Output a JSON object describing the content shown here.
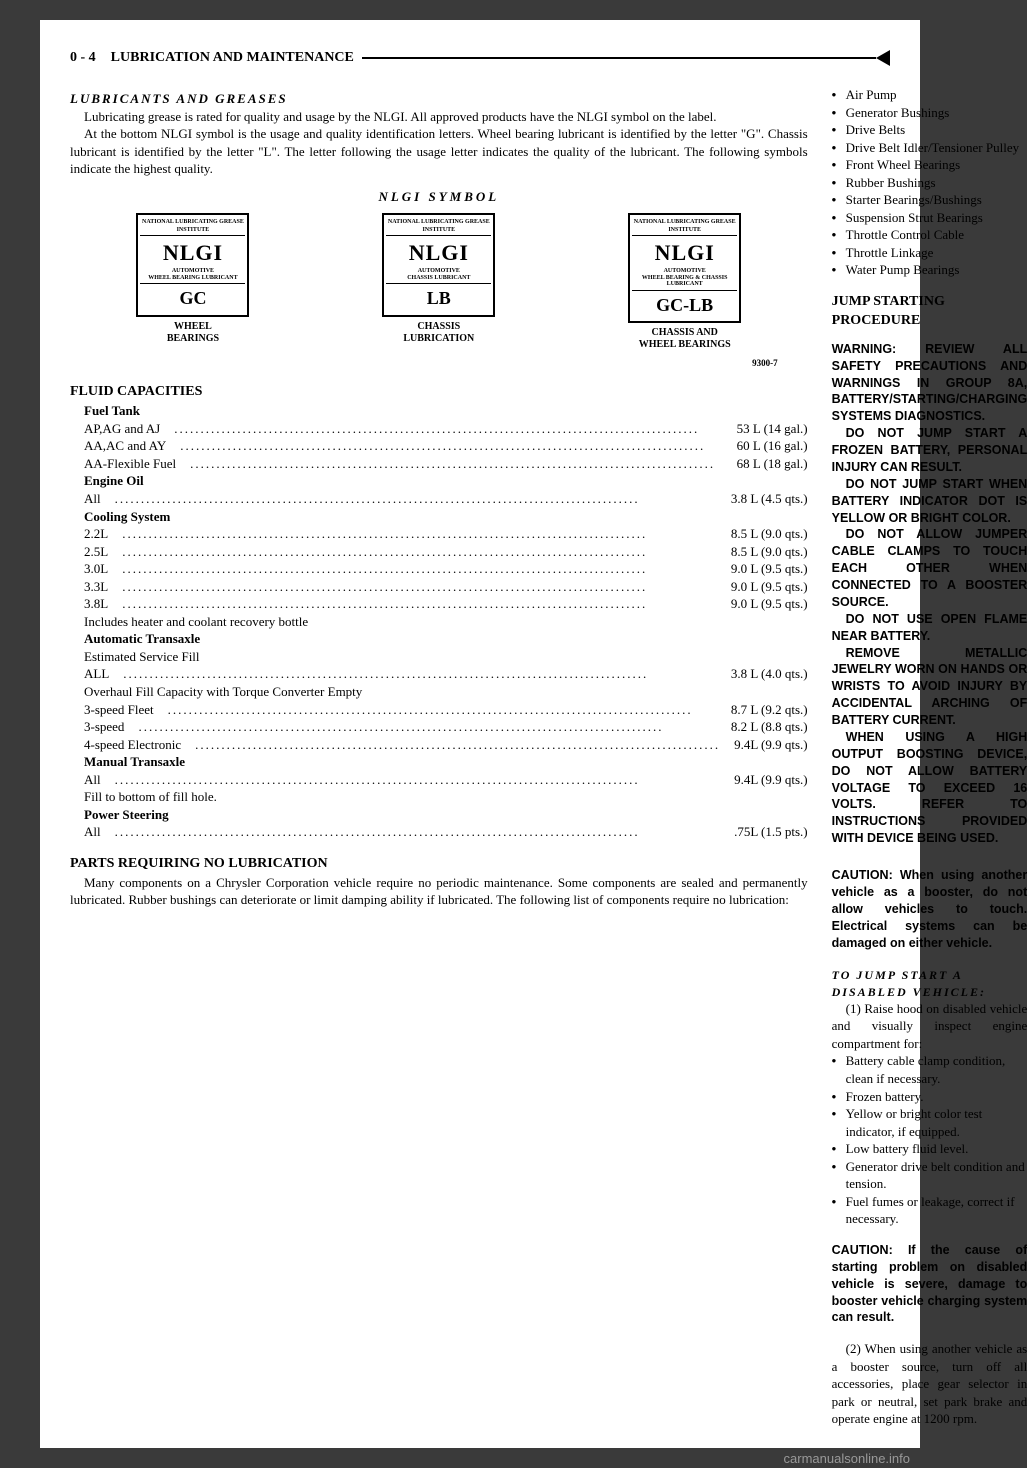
{
  "header": {
    "page_num": "0 - 4",
    "title": "LUBRICATION AND MAINTENANCE"
  },
  "left": {
    "lubricants_heading": "LUBRICANTS AND GREASES",
    "lubricants_p1": "Lubricating grease is rated for quality and usage by the NLGI. All approved products have the NLGI symbol on the label.",
    "lubricants_p2": "At the bottom NLGI symbol is the usage and quality identification letters. Wheel bearing lubricant is identified by the letter \"G\". Chassis lubricant is identified by the letter \"L\". The letter following the usage letter indicates the quality of the lubricant. The following symbols indicate the highest quality.",
    "nlgi_title": "NLGI SYMBOL",
    "nlgi": [
      {
        "top": "NATIONAL LUBRICATING GREASE INSTITUTE",
        "main": "NLGI",
        "sub": "AUTOMOTIVE\nWHEEL BEARING LUBRICANT",
        "code": "GC",
        "caption": "WHEEL\nBEARINGS"
      },
      {
        "top": "NATIONAL LUBRICATING GREASE INSTITUTE",
        "main": "NLGI",
        "sub": "AUTOMOTIVE\nCHASSIS LUBRICANT",
        "code": "LB",
        "caption": "CHASSIS\nLUBRICATION"
      },
      {
        "top": "NATIONAL LUBRICATING GREASE INSTITUTE",
        "main": "NLGI",
        "sub": "AUTOMOTIVE\nWHEEL BEARING & CHASSIS\nLUBRICANT",
        "code": "GC-LB",
        "caption": "CHASSIS AND\nWHEEL BEARINGS"
      }
    ],
    "nlgi_ref": "9300-7",
    "fluid_heading": "FLUID CAPACITIES",
    "fluid_groups": [
      {
        "label": "Fuel Tank",
        "bold": true,
        "rows": [
          {
            "l": "AP,AG and AJ",
            "v": "53 L (14 gal.)"
          },
          {
            "l": "AA,AC and AY",
            "v": "60 L (16 gal.)"
          },
          {
            "l": "AA-Flexible Fuel",
            "v": "68 L (18 gal.)"
          }
        ]
      },
      {
        "label": "Engine Oil",
        "bold": true,
        "rows": [
          {
            "l": "All",
            "v": "3.8 L (4.5 qts.)"
          }
        ]
      },
      {
        "label": "Cooling System",
        "bold": true,
        "rows": [
          {
            "l": "2.2L",
            "v": "8.5 L (9.0 qts.)"
          },
          {
            "l": "2.5L",
            "v": "8.5 L (9.0 qts.)"
          },
          {
            "l": "3.0L",
            "v": "9.0 L (9.5 qts.)"
          },
          {
            "l": "3.3L",
            "v": "9.0 L (9.5 qts.)"
          },
          {
            "l": "3.8L",
            "v": "9.0 L (9.5 qts.)"
          }
        ],
        "note": "Includes heater and coolant recovery bottle"
      },
      {
        "label": "Automatic Transaxle",
        "bold": true,
        "rows": []
      },
      {
        "label": "Estimated Service Fill",
        "bold": false,
        "rows": [
          {
            "l": "ALL",
            "v": "3.8 L (4.0 qts.)"
          }
        ],
        "note": "Overhaul Fill Capacity with Torque Converter Empty"
      },
      {
        "label": "",
        "bold": false,
        "rows": [
          {
            "l": "3-speed Fleet",
            "v": "8.7 L (9.2 qts.)"
          },
          {
            "l": "3-speed",
            "v": "8.2 L (8.8 qts.)"
          },
          {
            "l": "4-speed Electronic",
            "v": "9.4L (9.9 qts.)"
          }
        ]
      },
      {
        "label": "Manual Transaxle",
        "bold": true,
        "rows": [
          {
            "l": "All",
            "v": "9.4L (9.9 qts.)"
          }
        ],
        "note": "Fill to bottom of fill hole."
      },
      {
        "label": "Power Steering",
        "bold": true,
        "rows": [
          {
            "l": "All",
            "v": ".75L (1.5 pts.)"
          }
        ]
      }
    ],
    "parts_heading": "PARTS REQUIRING NO LUBRICATION",
    "parts_p": "Many components on a Chrysler Corporation vehicle require no periodic maintenance. Some components are sealed and permanently lubricated. Rubber bushings can deteriorate or limit damping ability if lubricated. The following list of components require no lubrication:"
  },
  "right": {
    "parts_list": [
      "Air Pump",
      "Generator Bushings",
      "Drive Belts",
      "Drive Belt Idler/Tensioner Pulley",
      "Front Wheel Bearings",
      "Rubber Bushings",
      "Starter Bearings/Bushings",
      "Suspension Strut Bearings",
      "Throttle Control Cable",
      "Throttle Linkage",
      "Water Pump Bearings"
    ],
    "jump_heading": "JUMP STARTING PROCEDURE",
    "warning": [
      "WARNING: REVIEW ALL SAFETY PRECAUTIONS AND WARNINGS IN GROUP 8A, BATTERY/STARTING/CHARGING SYSTEMS DIAGNOSTICS.",
      "DO NOT JUMP START A FROZEN BATTERY, PERSONAL INJURY CAN RESULT.",
      "DO NOT JUMP START WHEN BATTERY INDICATOR DOT IS YELLOW OR BRIGHT COLOR.",
      "DO NOT ALLOW JUMPER CABLE CLAMPS TO TOUCH EACH OTHER WHEN CONNECTED TO A BOOSTER SOURCE.",
      "DO NOT USE OPEN FLAME NEAR BATTERY.",
      "REMOVE METALLIC JEWELRY WORN ON HANDS OR WRISTS TO AVOID INJURY BY ACCIDENTAL ARCHING OF BATTERY CURRENT.",
      "WHEN USING A HIGH OUTPUT BOOSTING DEVICE, DO NOT ALLOW BATTERY VOLTAGE TO EXCEED 16 VOLTS. REFER TO INSTRUCTIONS PROVIDED WITH DEVICE BEING USED."
    ],
    "caution1": "CAUTION: When using another vehicle as a booster, do not allow vehicles to touch. Electrical systems can be damaged on either vehicle.",
    "sub_heading": "TO JUMP START A DISABLED VEHICLE:",
    "step1": "(1) Raise hood on disabled vehicle and visually inspect engine compartment for:",
    "checklist": [
      "Battery cable clamp condition, clean if necessary.",
      "Frozen battery.",
      "Yellow or bright color test indicator, if equipped.",
      "Low battery fluid level.",
      "Generator drive belt condition and tension.",
      "Fuel fumes or leakage, correct if necessary."
    ],
    "caution2": "CAUTION: If the cause of starting problem on disabled vehicle is severe, damage to booster vehicle charging system can result.",
    "step2": "(2) When using another vehicle as a booster source, turn off all accessories, place gear selector in park or neutral, set park brake and operate engine at 1200 rpm."
  },
  "footer": "carmanualsonline.info"
}
